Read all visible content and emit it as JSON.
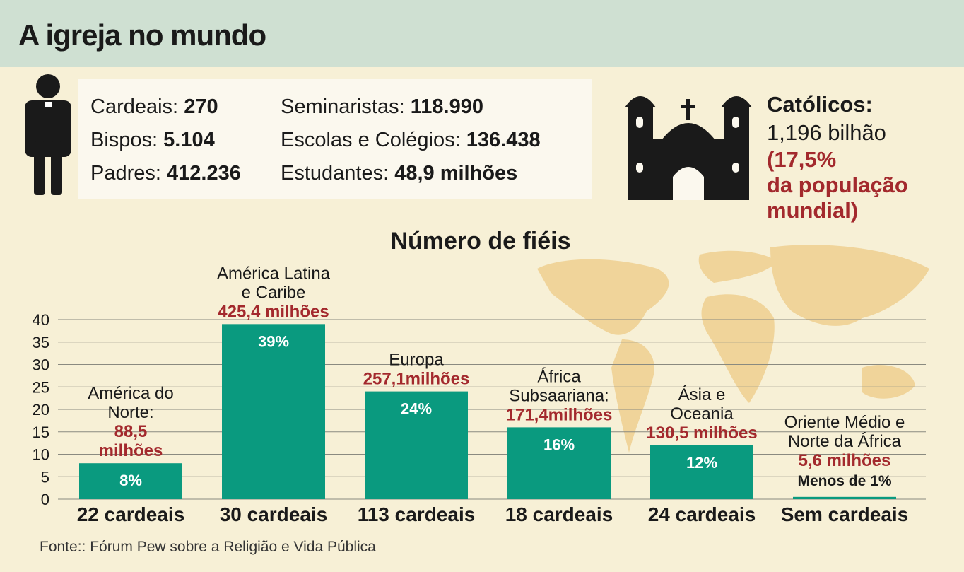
{
  "header": {
    "title": "A igreja no mundo"
  },
  "stats": [
    [
      {
        "label": "Cardeais:",
        "value": "270"
      },
      {
        "label": "Bispos:",
        "value": "5.104"
      },
      {
        "label": "Padres:",
        "value": "412.236"
      }
    ],
    [
      {
        "label": "Seminaristas:",
        "value": "118.990"
      },
      {
        "label": "Escolas e Colégios:",
        "value": "136.438"
      },
      {
        "label": "Estudantes:",
        "value": "48,9 milhões"
      }
    ]
  ],
  "catholics": {
    "heading": "Católicos:",
    "total": "1,196 bilhão",
    "share_lines": [
      "(17,5%",
      "da população",
      "mundial)"
    ]
  },
  "chart_data": {
    "type": "bar",
    "title": "Número de fiéis",
    "categories": [
      [
        "América do",
        "Norte:"
      ],
      [
        "América Latina",
        "e Caribe"
      ],
      [
        "Europa"
      ],
      [
        "África",
        "Subsaariana:"
      ],
      [
        "Ásia e",
        "Oceania"
      ],
      [
        "Oriente Médio e",
        "Norte da África"
      ]
    ],
    "population": [
      [
        "88,5",
        "milhões"
      ],
      [
        "425,4 milhões"
      ],
      [
        "257,1milhões"
      ],
      [
        "171,4milhões"
      ],
      [
        "130,5 milhões"
      ],
      [
        "5,6 milhões"
      ]
    ],
    "cardinals": [
      "22 cardeais",
      "30 cardeais",
      "113 cardeais",
      "18 cardeais",
      "24 cardeais",
      "Sem cardeais"
    ],
    "values": [
      8,
      39,
      24,
      16,
      12,
      0.5
    ],
    "value_labels": [
      "8%",
      "39%",
      "24%",
      "16%",
      "12%",
      "Menos de 1%"
    ],
    "color": "#0a9a7f",
    "ylim": [
      0,
      40
    ],
    "yticks": [
      0,
      5,
      10,
      15,
      20,
      25,
      30,
      35,
      40
    ],
    "grid": true
  },
  "source": "Fonte:: Fórum Pew  sobre a Religião e Vida Pública"
}
